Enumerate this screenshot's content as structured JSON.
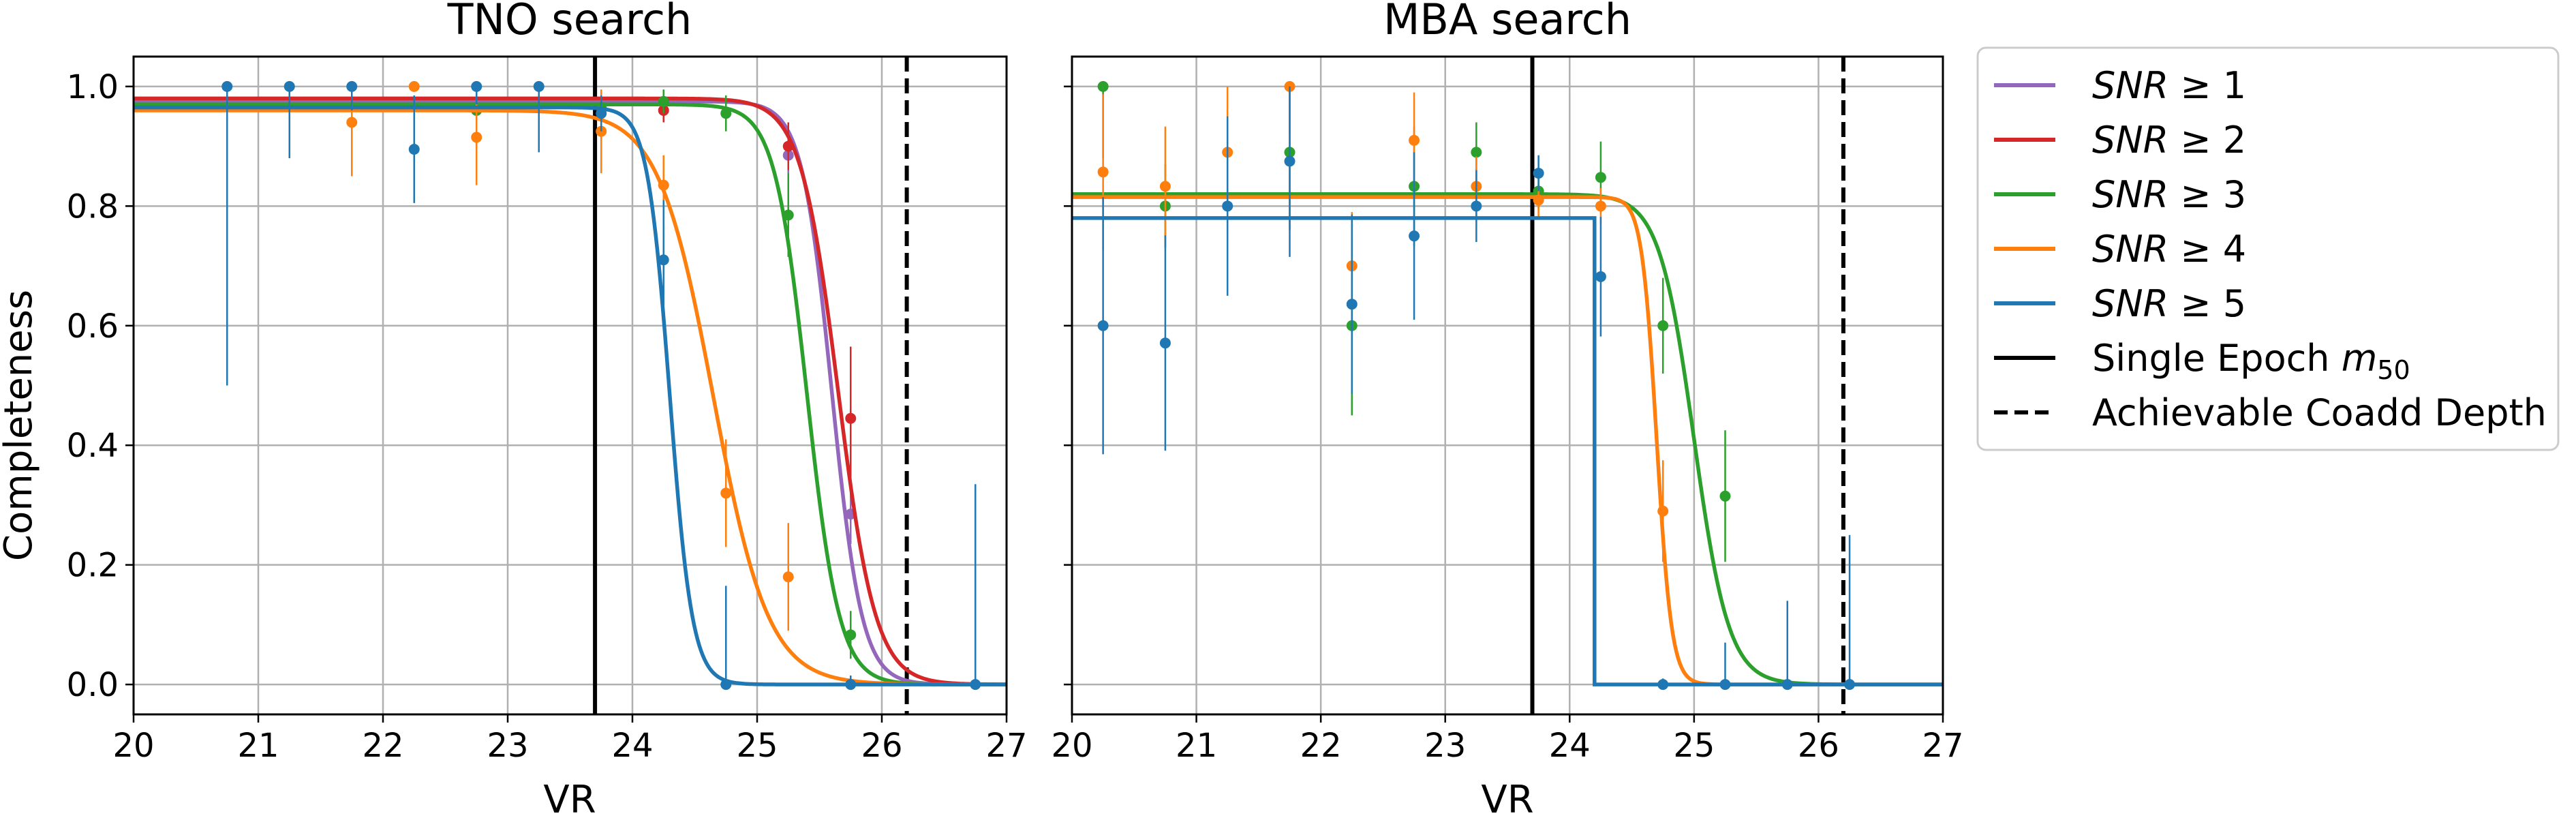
{
  "figure": {
    "legend": {
      "items": [
        {
          "label_prefix": "SNR",
          "label_rel": " ≥ 1",
          "color": "#9467bd",
          "style": "solid"
        },
        {
          "label_prefix": "SNR",
          "label_rel": " ≥ 2",
          "color": "#d62728",
          "style": "solid"
        },
        {
          "label_prefix": "SNR",
          "label_rel": " ≥ 3",
          "color": "#2ca02c",
          "style": "solid"
        },
        {
          "label_prefix": "SNR",
          "label_rel": " ≥ 4",
          "color": "#ff7f0e",
          "style": "solid"
        },
        {
          "label_prefix": "SNR",
          "label_rel": " ≥ 5",
          "color": "#1f77b4",
          "style": "solid"
        },
        {
          "label_prefix": "Single Epoch ",
          "label_m": "m",
          "label_sub": "50",
          "color": "#000000",
          "style": "solid"
        },
        {
          "label_prefix": "Achievable Coadd Depth",
          "color": "#000000",
          "style": "dashed"
        }
      ]
    }
  },
  "chart_data": [
    {
      "type": "line",
      "title": "TNO search",
      "xlabel": "VR",
      "ylabel": "Completeness",
      "xlim": [
        20,
        27
      ],
      "ylim": [
        -0.05,
        1.05
      ],
      "xticks": [
        "20",
        "21",
        "22",
        "23",
        "24",
        "25",
        "26",
        "27"
      ],
      "yticks": [
        "0.0",
        "0.2",
        "0.4",
        "0.6",
        "0.8",
        "1.0"
      ],
      "grid": true,
      "vlines": [
        {
          "x": 23.7,
          "style": "solid",
          "label": "Single Epoch m50"
        },
        {
          "x": 26.2,
          "style": "dashed",
          "label": "Achievable Coadd Depth"
        }
      ],
      "series": [
        {
          "name": "SNR ≥ 1",
          "color": "#9467bd",
          "fit": {
            "kind": "logistic",
            "amp": 0.975,
            "m50": 25.6,
            "width": 0.12
          },
          "points": [
            [
              25.25,
              0.885,
              0.04
            ],
            [
              25.75,
              0.285,
              0.05
            ]
          ]
        },
        {
          "name": "SNR ≥ 2",
          "color": "#d62728",
          "fit": {
            "kind": "logistic",
            "amp": 0.98,
            "m50": 25.65,
            "width": 0.15
          },
          "points": [
            [
              24.25,
              0.96,
              0.02
            ],
            [
              25.25,
              0.9,
              0.04
            ],
            [
              25.75,
              0.445,
              0.12
            ]
          ]
        },
        {
          "name": "SNR ≥ 3",
          "color": "#2ca02c",
          "fit": {
            "kind": "logistic",
            "amp": 0.97,
            "m50": 25.4,
            "width": 0.13
          },
          "points": [
            [
              22.75,
              0.96,
              0.02
            ],
            [
              23.75,
              0.965,
              0.02
            ],
            [
              24.25,
              0.975,
              0.02
            ],
            [
              24.75,
              0.955,
              0.03
            ],
            [
              25.25,
              0.785,
              0.07
            ],
            [
              25.75,
              0.083,
              0.04
            ]
          ]
        },
        {
          "name": "SNR ≥ 4",
          "color": "#ff7f0e",
          "fit": {
            "kind": "logistic",
            "amp": 0.96,
            "m50": 24.65,
            "width": 0.22
          },
          "points": [
            [
              21.75,
              0.94,
              0.09
            ],
            [
              22.25,
              1.0,
              0.0
            ],
            [
              22.75,
              0.915,
              0.08
            ],
            [
              23.75,
              0.925,
              0.07
            ],
            [
              24.25,
              0.835,
              0.05
            ],
            [
              24.75,
              0.32,
              0.09
            ],
            [
              25.25,
              0.18,
              0.09
            ]
          ]
        },
        {
          "name": "SNR ≥ 5",
          "color": "#1f77b4",
          "fit": {
            "kind": "logistic",
            "amp": 0.965,
            "m50": 24.3,
            "width": 0.09
          },
          "points": [
            [
              20.75,
              1.0,
              0.5
            ],
            [
              21.25,
              1.0,
              0.12
            ],
            [
              21.75,
              1.0,
              0.04
            ],
            [
              22.25,
              0.895,
              0.09
            ],
            [
              22.75,
              1.0,
              0.03
            ],
            [
              23.25,
              1.0,
              0.11
            ],
            [
              23.75,
              0.955,
              0.03
            ],
            [
              24.25,
              0.71,
              0.1
            ],
            [
              24.75,
              0.0,
              0.165
            ],
            [
              25.75,
              0.0,
              0.015
            ],
            [
              26.75,
              0.0,
              0.335
            ]
          ]
        }
      ]
    },
    {
      "type": "line",
      "title": "MBA search",
      "xlabel": "VR",
      "ylabel": "",
      "xlim": [
        20,
        27
      ],
      "ylim": [
        -0.05,
        1.05
      ],
      "xticks": [
        "20",
        "21",
        "22",
        "23",
        "24",
        "25",
        "26",
        "27"
      ],
      "yticks": [
        "0.0",
        "0.2",
        "0.4",
        "0.6",
        "0.8",
        "1.0"
      ],
      "grid": true,
      "vlines": [
        {
          "x": 23.7,
          "style": "solid",
          "label": "Single Epoch m50"
        },
        {
          "x": 26.2,
          "style": "dashed",
          "label": "Achievable Coadd Depth"
        }
      ],
      "series": [
        {
          "name": "SNR ≥ 3",
          "color": "#2ca02c",
          "fit": {
            "kind": "logistic",
            "amp": 0.82,
            "m50": 25.0,
            "width": 0.14
          },
          "points": [
            [
              20.25,
              1.0,
              0.12
            ],
            [
              20.75,
              0.8,
              0.07
            ],
            [
              21.75,
              0.89,
              0.13
            ],
            [
              22.25,
              0.6,
              0.15
            ],
            [
              22.75,
              0.833,
              0.1
            ],
            [
              23.25,
              0.89,
              0.05
            ],
            [
              23.75,
              0.825,
              0.03
            ],
            [
              24.25,
              0.848,
              0.06
            ],
            [
              24.75,
              0.6,
              0.08
            ],
            [
              25.25,
              0.315,
              0.11
            ]
          ]
        },
        {
          "name": "SNR ≥ 4",
          "color": "#ff7f0e",
          "fit": {
            "kind": "logistic",
            "amp": 0.815,
            "m50": 24.7,
            "width": 0.06
          },
          "points": [
            [
              20.25,
              0.857,
              0.13
            ],
            [
              20.75,
              0.833,
              0.1
            ],
            [
              21.25,
              0.89,
              0.14
            ],
            [
              21.75,
              1.0,
              0.08
            ],
            [
              22.25,
              0.7,
              0.09
            ],
            [
              22.75,
              0.91,
              0.08
            ],
            [
              23.25,
              0.833,
              0.05
            ],
            [
              23.75,
              0.81,
              0.03
            ],
            [
              24.25,
              0.8,
              0.03
            ],
            [
              24.75,
              0.29,
              0.085
            ]
          ]
        },
        {
          "name": "SNR ≥ 5",
          "color": "#1f77b4",
          "fit": {
            "kind": "step",
            "amp": 0.78,
            "m50": 24.2
          },
          "points": [
            [
              20.25,
              0.6,
              0.215
            ],
            [
              20.75,
              0.571,
              0.18
            ],
            [
              21.25,
              0.8,
              0.15
            ],
            [
              21.75,
              0.875,
              0.16
            ],
            [
              22.25,
              0.636,
              0.15
            ],
            [
              22.75,
              0.75,
              0.14
            ],
            [
              23.25,
              0.8,
              0.06
            ],
            [
              23.75,
              0.855,
              0.03
            ],
            [
              24.25,
              0.682,
              0.1
            ],
            [
              24.75,
              0.0,
              0.01
            ],
            [
              25.25,
              0.0,
              0.07
            ],
            [
              25.75,
              0.0,
              0.14
            ],
            [
              26.25,
              0.0,
              0.25
            ]
          ]
        }
      ]
    }
  ]
}
